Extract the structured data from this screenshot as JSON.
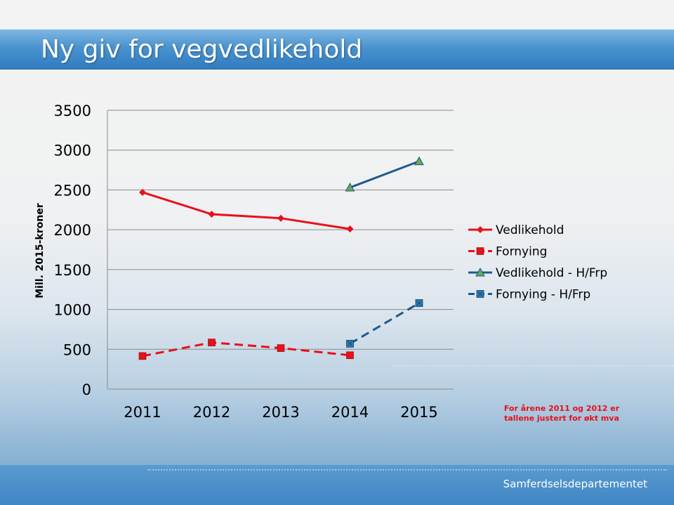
{
  "title": "Ny giv for vegvedlikehold",
  "footer": "Samferdselsdepartementet",
  "note_lines": [
    "For årene 2011 og 2012 er",
    "tallene justert for økt mva"
  ],
  "colors": {
    "red": "#e8101a",
    "blue": "#1b5a8f",
    "green_marker": "#6aa84f",
    "note": "#e8101a"
  },
  "chart_data": {
    "type": "line",
    "categories": [
      "2011",
      "2012",
      "2013",
      "2014",
      "2015"
    ],
    "ylabel": "Mill. 2015-kroner",
    "ylim": [
      0,
      3500
    ],
    "yticks": [
      "0",
      "500",
      "1000",
      "1500",
      "2000",
      "2500",
      "3000",
      "3500"
    ],
    "grid": true,
    "legend_position": "right",
    "series": [
      {
        "name": "Vedlikehold",
        "style": "solid",
        "color": "#e8101a",
        "marker": "diamond",
        "values": [
          2470,
          2195,
          2145,
          2010,
          null
        ]
      },
      {
        "name": "Fornying",
        "style": "dashed",
        "color": "#e8101a",
        "marker": "square",
        "values": [
          415,
          585,
          515,
          425,
          null
        ]
      },
      {
        "name": "Vedlikehold - H/Frp",
        "style": "solid",
        "color": "#1b5a8f",
        "marker": "triangle",
        "values": [
          null,
          null,
          null,
          2530,
          2860
        ]
      },
      {
        "name": "Fornying - H/Frp",
        "style": "dashed",
        "color": "#1b5a8f",
        "marker": "square-x",
        "values": [
          null,
          null,
          null,
          570,
          1080
        ]
      }
    ]
  }
}
